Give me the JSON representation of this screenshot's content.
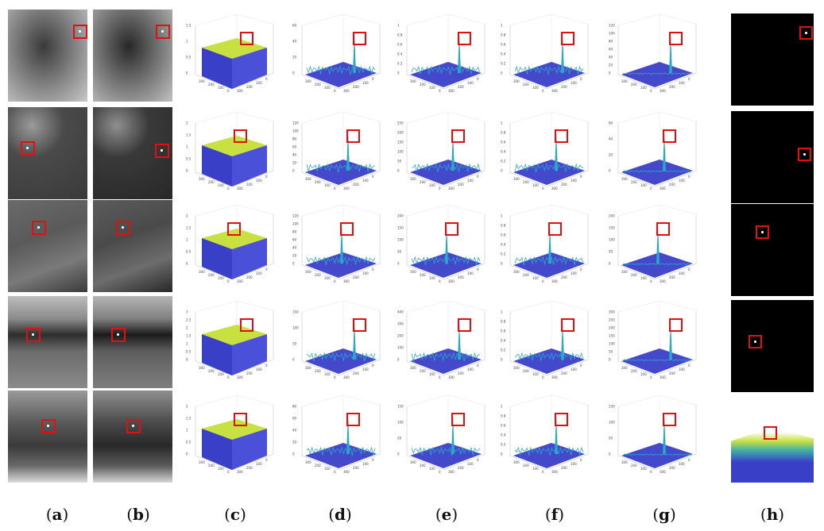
{
  "captions": [
    "a",
    "b",
    "c",
    "d",
    "e",
    "f",
    "g",
    "h"
  ],
  "rows": [
    {
      "target": "bright point target near top-right of frame, sky background with mountains at bottom",
      "c_ticks": [
        "1.5",
        "1",
        "0.5",
        "0"
      ],
      "d_ticks": [
        "60",
        "40",
        "20",
        "0"
      ],
      "e_ticks": [
        "1",
        "0.8",
        "0.6",
        "0.4",
        "0.2",
        "0"
      ],
      "f_ticks": [
        "1",
        "0.8",
        "0.6",
        "0.4",
        "0.2",
        "0"
      ],
      "g_ticks": [
        "120",
        "100",
        "80",
        "60",
        "40",
        "20",
        "0"
      ]
    },
    {
      "target": "small target on dark dotted terrain",
      "c_ticks": [
        "2",
        "1.5",
        "1",
        "0.5",
        "0"
      ],
      "d_ticks": [
        "120",
        "100",
        "80",
        "60",
        "40",
        "20",
        "0"
      ],
      "e_ticks": [
        "250",
        "200",
        "150",
        "100",
        "50",
        "0"
      ],
      "f_ticks": [
        "1",
        "0.8",
        "0.6",
        "0.4",
        "0.2",
        "0"
      ],
      "g_ticks": [
        "60",
        "40",
        "20",
        "0"
      ]
    },
    {
      "target": "small target on grassy slope",
      "c_ticks": [
        "2",
        "1.5",
        "1",
        "0.5",
        "0"
      ],
      "d_ticks": [
        "120",
        "100",
        "80",
        "60",
        "40",
        "20",
        "0"
      ],
      "e_ticks": [
        "200",
        "150",
        "100",
        "50",
        "0"
      ],
      "f_ticks": [
        "1",
        "0.8",
        "0.6",
        "0.4",
        "0.2",
        "0"
      ],
      "g_ticks": [
        "200",
        "150",
        "100",
        "50",
        "0"
      ]
    },
    {
      "target": "small target near treeline",
      "c_ticks": [
        "3",
        "2.5",
        "2",
        "1.5",
        "1",
        "0.5",
        "0"
      ],
      "d_ticks": [
        "150",
        "100",
        "50",
        "0"
      ],
      "e_ticks": [
        "400",
        "300",
        "200",
        "100",
        "0"
      ],
      "f_ticks": [
        "1",
        "0.8",
        "0.6",
        "0.4",
        "0.2",
        "0"
      ],
      "g_ticks": [
        "300",
        "250",
        "200",
        "150",
        "100",
        "50",
        "0"
      ]
    },
    {
      "target": "small target over hazy terrain with buildings",
      "c_ticks": [
        "2",
        "1.5",
        "1",
        "0.5",
        "0"
      ],
      "d_ticks": [
        "80",
        "60",
        "40",
        "20",
        "0"
      ],
      "e_ticks": [
        "150",
        "100",
        "50",
        "0"
      ],
      "f_ticks": [
        "1",
        "0.8",
        "0.6",
        "0.4",
        "0.2",
        "0"
      ],
      "g_ticks": [
        "150",
        "100",
        "50",
        "0"
      ]
    }
  ],
  "axis_ticks": [
    "300",
    "200",
    "100",
    "0"
  ],
  "colors": {
    "box": "#e01010",
    "surface_low": "#3a3fc8",
    "surface_mid": "#2aa8c8",
    "surface_high": "#c8e040"
  }
}
